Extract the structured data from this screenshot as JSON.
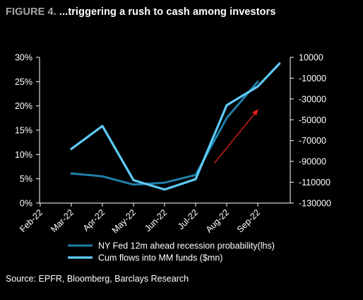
{
  "figure": {
    "label": "FIGURE 4.",
    "title": "...triggering a rush to cash among investors",
    "source": "Source: EPFR, Bloomberg, Barclays Research"
  },
  "colors": {
    "background": "#000000",
    "series_lhs": "#1f7fa8",
    "series_rhs": "#5ecbf5",
    "arrow": "#e0201c",
    "axis": "#ffffff"
  },
  "chart_data": {
    "type": "line",
    "x": [
      "Feb-22",
      "Mar-22",
      "Apr-22",
      "May-22",
      "Jun-22",
      "Jul-22",
      "Aug-22",
      "Sep-22"
    ],
    "xlabel": "",
    "ylabel_left": "",
    "ylabel_right": "",
    "ylim_left": [
      0,
      30
    ],
    "yticks_left": [
      "0%",
      "5%",
      "10%",
      "15%",
      "20%",
      "25%",
      "30%"
    ],
    "ylim_right": [
      -130000,
      10000
    ],
    "yticks_right": [
      "10000",
      "-10000",
      "-30000",
      "-50000",
      "-70000",
      "-90000",
      "-110000",
      "-130000"
    ],
    "grid": false,
    "legend_position": "bottom",
    "series": [
      {
        "name": "NY Fed 12m ahead recession probability(lhs)",
        "axis": "left",
        "points": [
          {
            "x": 1.0,
            "y": 6.1
          },
          {
            "x": 2.0,
            "y": 5.5
          },
          {
            "x": 3.0,
            "y": 3.8
          },
          {
            "x": 4.0,
            "y": 4.2
          },
          {
            "x": 5.0,
            "y": 5.8
          },
          {
            "x": 6.0,
            "y": 17.5
          },
          {
            "x": 7.0,
            "y": 25.0
          }
        ]
      },
      {
        "name": "Cum flows into MM funds ($mn)",
        "axis": "right",
        "points": [
          {
            "x": 1.0,
            "y": -78000
          },
          {
            "x": 2.0,
            "y": -56000
          },
          {
            "x": 3.0,
            "y": -108000
          },
          {
            "x": 4.0,
            "y": -117000
          },
          {
            "x": 5.0,
            "y": -107000
          },
          {
            "x": 6.0,
            "y": -36000
          },
          {
            "x": 7.0,
            "y": -18000
          },
          {
            "x": 7.7,
            "y": 4000
          }
        ]
      }
    ],
    "annotations": [
      {
        "type": "arrow",
        "color": "#e0201c",
        "from": {
          "x": 5.6,
          "y": 8.2
        },
        "to": {
          "x": 7.0,
          "y": 19.2
        }
      }
    ]
  }
}
